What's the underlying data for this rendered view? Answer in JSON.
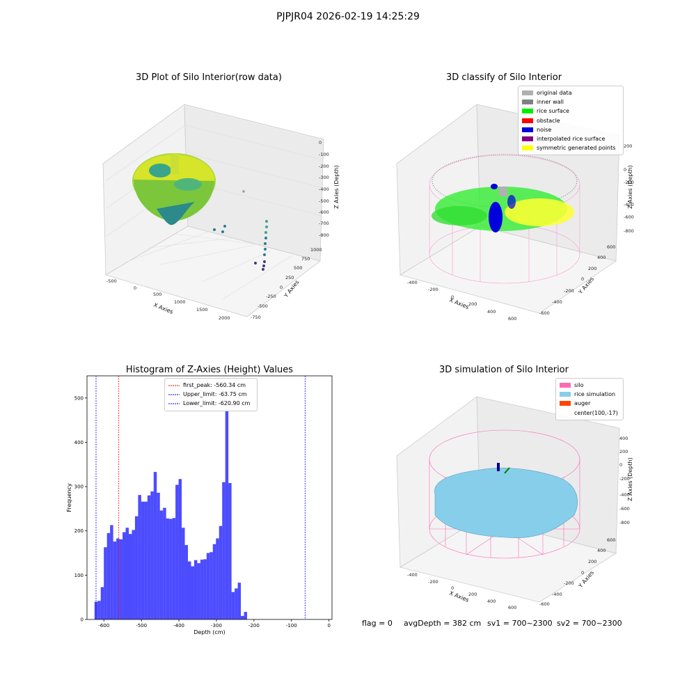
{
  "suptitle": "PJPJR04 2026-02-19 14:25:29",
  "panels": {
    "raw": {
      "title": "3D Plot of Silo Interior(row data)",
      "x_label": "X Axies",
      "y_label": "Y Axies",
      "z_label": "Z Axies (Depth)",
      "x_ticks": [
        "-500",
        "0",
        "500",
        "1000",
        "1500",
        "2000"
      ],
      "y_ticks": [
        "-750",
        "-500",
        "-250",
        "0",
        "250",
        "500",
        "750",
        "1000"
      ],
      "z_ticks": [
        "0",
        "-100",
        "-200",
        "-300",
        "-400",
        "-500",
        "-600",
        "-700",
        "-800"
      ]
    },
    "classify": {
      "title": "3D classify of Silo Interior",
      "x_label": "X Axies",
      "y_label": "Y Axies",
      "z_label": "Z Axies (Depth)",
      "x_ticks": [
        "-400",
        "-200",
        "0",
        "200",
        "400",
        "600"
      ],
      "y_ticks": [
        "-600",
        "-400",
        "-200",
        "0",
        "200",
        "400",
        "600"
      ],
      "z_ticks": [
        "200",
        "0",
        "-200",
        "-400",
        "-600",
        "-800"
      ],
      "legend": [
        {
          "label": "original data",
          "color": "#b0b0b0"
        },
        {
          "label": "inner wall",
          "color": "#808080"
        },
        {
          "label": "rice surface",
          "color": "#00ee00"
        },
        {
          "label": "obstacle",
          "color": "#ff0000"
        },
        {
          "label": "noise",
          "color": "#0000dd"
        },
        {
          "label": "interpolated rice surface",
          "color": "#800080"
        },
        {
          "label": "symmetric generated points",
          "color": "#ffff00"
        }
      ]
    },
    "simulation": {
      "title": "3D simulation of Silo Interior",
      "x_label": "X Axies",
      "y_label": "Y Axies",
      "z_label": "Z Axies (Depth)",
      "x_ticks": [
        "-400",
        "-200",
        "0",
        "200",
        "400",
        "600"
      ],
      "y_ticks": [
        "-600",
        "-400",
        "-200",
        "0",
        "200",
        "400",
        "600"
      ],
      "z_ticks": [
        "400",
        "200",
        "0",
        "-200",
        "-400",
        "-600",
        "-800"
      ],
      "legend": [
        {
          "label": "silo",
          "color": "#ff69b4"
        },
        {
          "label": "rice simulation",
          "color": "#87ceeb"
        },
        {
          "label": "auger",
          "color": "#ff4500"
        },
        {
          "label": "center(100,-17)",
          "color": ""
        }
      ]
    }
  },
  "footer": {
    "flag": "flag = 0",
    "avg_depth": "avgDepth = 382 cm",
    "sv1": "sv1 = 700~2300",
    "sv2": "sv2 = 700~2300"
  },
  "chart_data": {
    "type": "bar",
    "title": "Histogram of Z-Axies (Height) Values",
    "xlabel": "Depth (cm)",
    "ylabel": "Frequency",
    "xlim": [
      -645,
      8
    ],
    "ylim": [
      0,
      550
    ],
    "x_ticks": [
      -600,
      -500,
      -400,
      -300,
      -200,
      -100,
      0
    ],
    "y_ticks": [
      0,
      100,
      200,
      300,
      400,
      500
    ],
    "bar_color": "#0000ff",
    "bin_width": 8.3,
    "bin_start": -625,
    "values": [
      40,
      42,
      73,
      163,
      195,
      213,
      176,
      183,
      181,
      197,
      207,
      193,
      202,
      233,
      281,
      266,
      266,
      280,
      289,
      333,
      286,
      246,
      252,
      228,
      227,
      229,
      304,
      317,
      207,
      168,
      131,
      120,
      134,
      127,
      135,
      136,
      150,
      152,
      170,
      183,
      211,
      310,
      524,
      308,
      62,
      70,
      83,
      8,
      17
    ],
    "vlines": [
      {
        "label": "first_peak: -560.34 cm",
        "x": -560.34,
        "color": "#ff0000"
      },
      {
        "label": "Upper_limit: -63.75 cm",
        "x": -63.75,
        "color": "#0000ff"
      },
      {
        "label": "Lower_limit: -620.90 cm",
        "x": -620.9,
        "color": "#0000ff"
      }
    ]
  }
}
